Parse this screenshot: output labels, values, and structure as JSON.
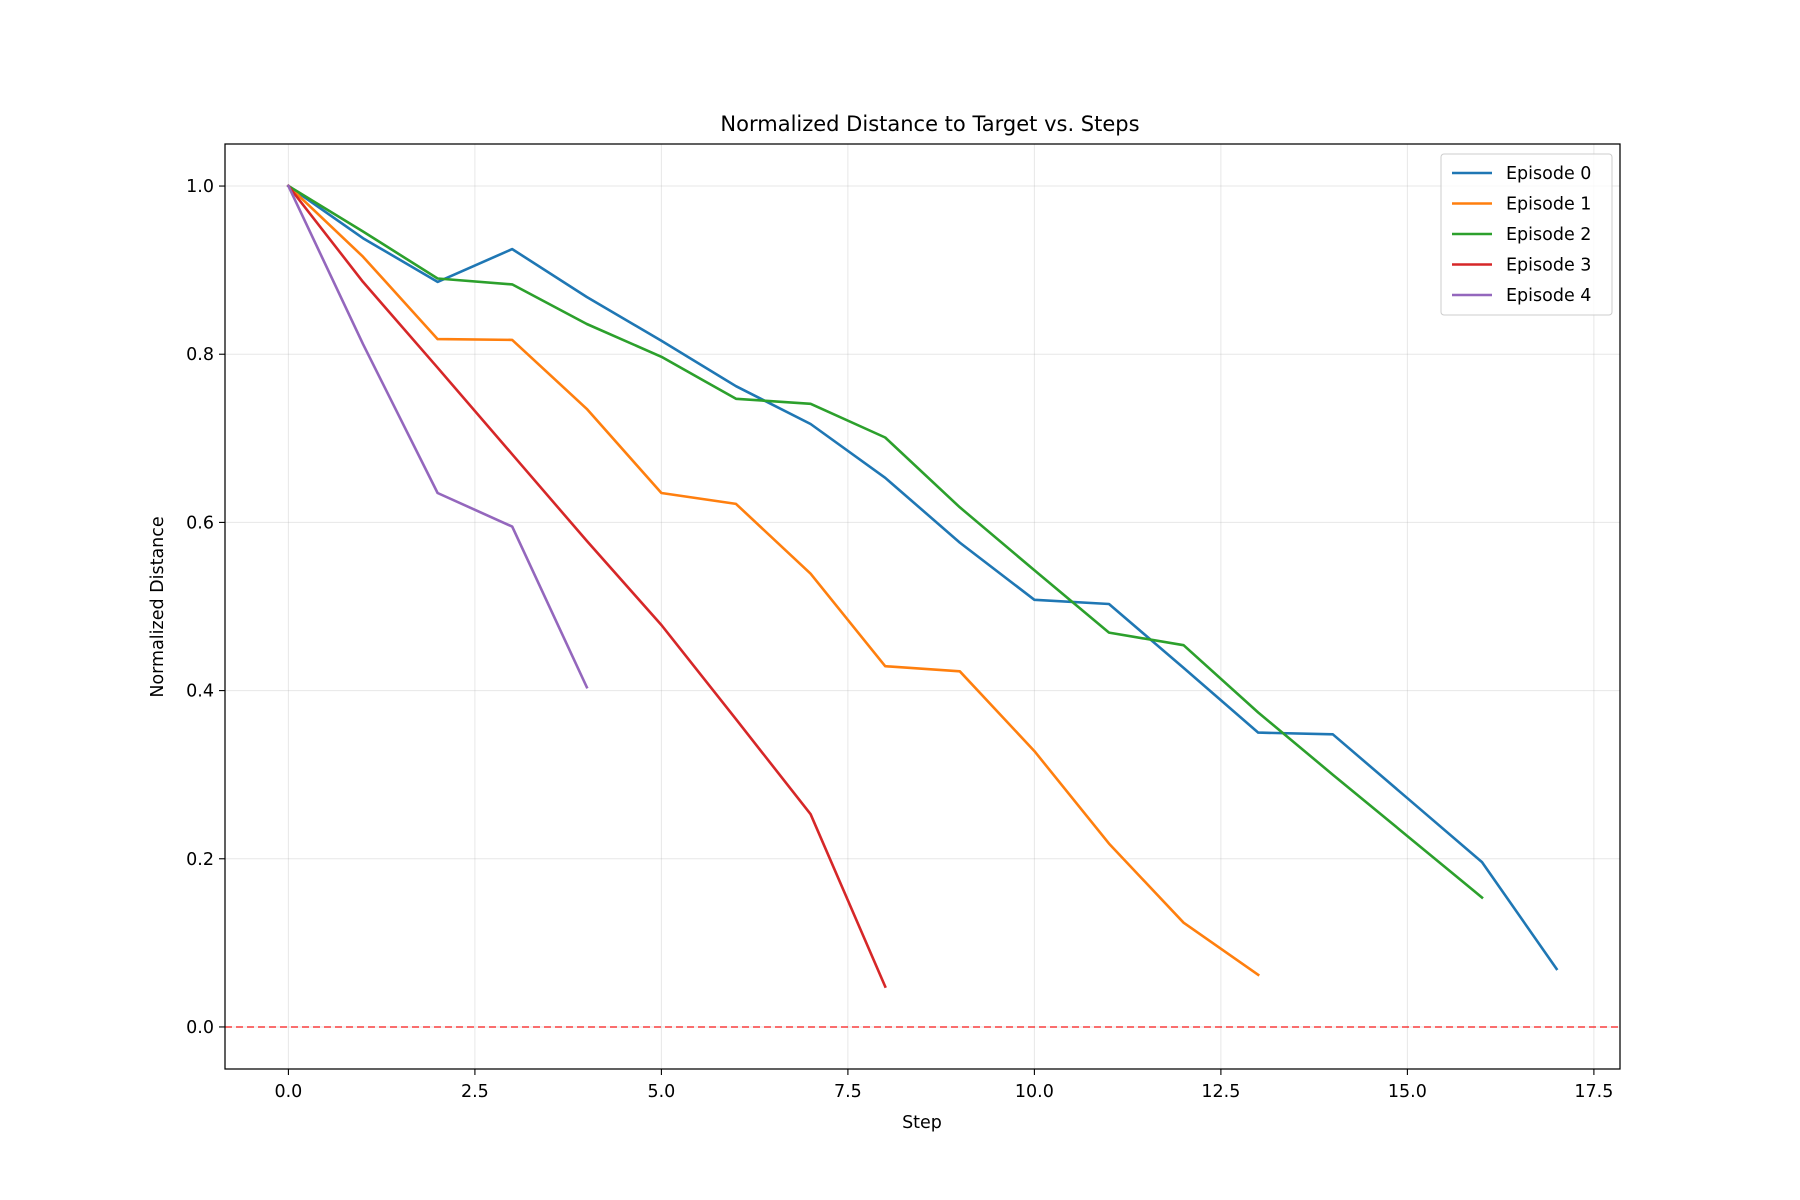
{
  "chart_data": {
    "type": "line",
    "title": "Normalized Distance to Target vs. Steps",
    "xlabel": "Step",
    "ylabel": "Normalized Distance",
    "xlim": [
      -0.85,
      17.85
    ],
    "ylim": [
      -0.05,
      1.05
    ],
    "xticks": [
      0.0,
      2.5,
      5.0,
      7.5,
      10.0,
      12.5,
      15.0,
      17.5
    ],
    "xtick_labels": [
      "0.0",
      "2.5",
      "5.0",
      "7.5",
      "10.0",
      "12.5",
      "15.0",
      "17.5"
    ],
    "yticks": [
      0.0,
      0.2,
      0.4,
      0.6,
      0.8,
      1.0
    ],
    "ytick_labels": [
      "0.0",
      "0.2",
      "0.4",
      "0.6",
      "0.8",
      "1.0"
    ],
    "grid": true,
    "legend_position": "top-right",
    "reference_line": {
      "y": 0.0,
      "color": "#ff0000",
      "style": "dashed"
    },
    "series": [
      {
        "name": "Episode 0",
        "color": "#1f77b4",
        "x": [
          0,
          1,
          2,
          3,
          4,
          5,
          6,
          7,
          8,
          9,
          10,
          11,
          12,
          13,
          14,
          15,
          16,
          17
        ],
        "y": [
          1.0,
          0.938,
          0.886,
          0.925,
          0.868,
          0.816,
          0.762,
          0.717,
          0.653,
          0.576,
          0.508,
          0.503,
          0.427,
          0.35,
          0.348,
          0.272,
          0.196,
          0.069
        ]
      },
      {
        "name": "Episode 1",
        "color": "#ff7f0e",
        "x": [
          0,
          1,
          2,
          3,
          4,
          5,
          6,
          7,
          8,
          9,
          10,
          11,
          12,
          13
        ],
        "y": [
          1.0,
          0.916,
          0.818,
          0.817,
          0.735,
          0.635,
          0.622,
          0.539,
          0.429,
          0.423,
          0.328,
          0.218,
          0.124,
          0.062
        ]
      },
      {
        "name": "Episode 2",
        "color": "#2ca02c",
        "x": [
          0,
          1,
          2,
          3,
          4,
          5,
          6,
          7,
          8,
          9,
          10,
          11,
          12,
          13,
          14,
          15,
          16
        ],
        "y": [
          1.0,
          0.946,
          0.89,
          0.883,
          0.836,
          0.797,
          0.747,
          0.741,
          0.701,
          0.618,
          0.543,
          0.469,
          0.454,
          0.374,
          0.3,
          0.227,
          0.154
        ]
      },
      {
        "name": "Episode 3",
        "color": "#d62728",
        "x": [
          0,
          1,
          2,
          3,
          4,
          5,
          6,
          7,
          8
        ],
        "y": [
          1.0,
          0.886,
          0.784,
          0.681,
          0.578,
          0.478,
          0.366,
          0.253,
          0.048
        ]
      },
      {
        "name": "Episode 4",
        "color": "#9467bd",
        "x": [
          0,
          1,
          2,
          3,
          4
        ],
        "y": [
          1.0,
          0.812,
          0.635,
          0.595,
          0.404
        ]
      }
    ]
  }
}
